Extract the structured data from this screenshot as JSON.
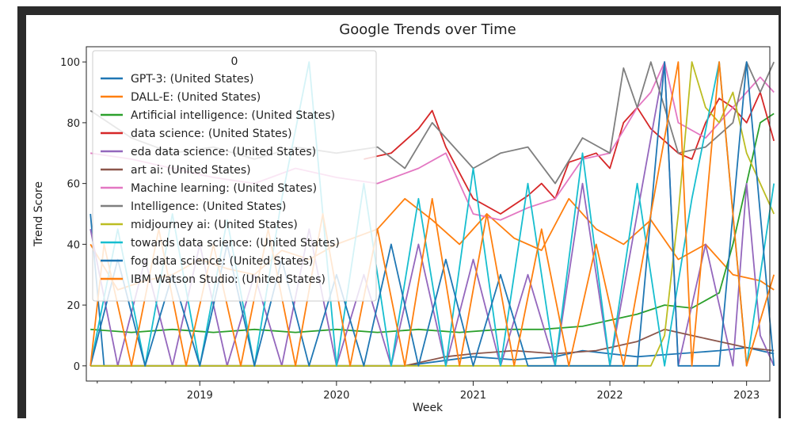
{
  "chart_data": {
    "type": "line",
    "title": "Google Trends over Time",
    "xlabel": "Week",
    "ylabel": "Trend Score",
    "legend_title": "0",
    "legend_placement": "upper-left",
    "x_range": [
      "2018-03-01",
      "2023-03-05"
    ],
    "ylim": [
      -5,
      105
    ],
    "x_ticks": [
      "2019",
      "2020",
      "2021",
      "2022",
      "2023"
    ],
    "y_ticks": [
      0,
      20,
      40,
      60,
      80,
      100
    ],
    "series": [
      {
        "name": "GPT-3: (United States)",
        "color": "#1f77b4",
        "values": [
          [
            2018.2,
            50
          ],
          [
            2018.3,
            0
          ],
          [
            2018.5,
            0
          ],
          [
            2018.7,
            0
          ],
          [
            2019.0,
            0
          ],
          [
            2019.5,
            0
          ],
          [
            2020.0,
            0
          ],
          [
            2020.5,
            0
          ],
          [
            2021.0,
            3
          ],
          [
            2021.3,
            2
          ],
          [
            2021.6,
            3
          ],
          [
            2021.8,
            5
          ],
          [
            2022.0,
            4
          ],
          [
            2022.2,
            3
          ],
          [
            2022.5,
            4
          ],
          [
            2022.8,
            5
          ],
          [
            2023.0,
            6
          ],
          [
            2023.2,
            4
          ]
        ]
      },
      {
        "name": "DALL-E: (United States)",
        "color": "#ff7f0e",
        "values": [
          [
            2018.2,
            40
          ],
          [
            2018.4,
            25
          ],
          [
            2018.6,
            28
          ],
          [
            2018.8,
            30
          ],
          [
            2019.0,
            35
          ],
          [
            2019.2,
            32
          ],
          [
            2019.4,
            30
          ],
          [
            2019.6,
            38
          ],
          [
            2019.8,
            35
          ],
          [
            2020.0,
            40
          ],
          [
            2020.3,
            45
          ],
          [
            2020.5,
            55
          ],
          [
            2020.7,
            48
          ],
          [
            2020.9,
            40
          ],
          [
            2021.1,
            50
          ],
          [
            2021.3,
            42
          ],
          [
            2021.5,
            38
          ],
          [
            2021.7,
            55
          ],
          [
            2021.9,
            45
          ],
          [
            2022.1,
            40
          ],
          [
            2022.3,
            48
          ],
          [
            2022.5,
            35
          ],
          [
            2022.7,
            40
          ],
          [
            2022.9,
            30
          ],
          [
            2023.1,
            28
          ],
          [
            2023.2,
            25
          ]
        ]
      },
      {
        "name": "Artificial intelligence: (United States)",
        "color": "#2ca02c",
        "values": [
          [
            2018.2,
            12
          ],
          [
            2018.5,
            11
          ],
          [
            2018.8,
            12
          ],
          [
            2019.1,
            11
          ],
          [
            2019.4,
            12
          ],
          [
            2019.7,
            11
          ],
          [
            2020.0,
            12
          ],
          [
            2020.3,
            11
          ],
          [
            2020.6,
            12
          ],
          [
            2020.9,
            11
          ],
          [
            2021.2,
            12
          ],
          [
            2021.5,
            12
          ],
          [
            2021.8,
            13
          ],
          [
            2022.0,
            15
          ],
          [
            2022.2,
            17
          ],
          [
            2022.4,
            20
          ],
          [
            2022.6,
            19
          ],
          [
            2022.8,
            24
          ],
          [
            2022.9,
            40
          ],
          [
            2023.0,
            60
          ],
          [
            2023.1,
            80
          ],
          [
            2023.2,
            83
          ]
        ]
      },
      {
        "name": "data science: (United States)",
        "color": "#d62728",
        "values": [
          [
            2020.2,
            68
          ],
          [
            2020.4,
            70
          ],
          [
            2020.6,
            78
          ],
          [
            2020.7,
            84
          ],
          [
            2020.8,
            72
          ],
          [
            2021.0,
            55
          ],
          [
            2021.2,
            50
          ],
          [
            2021.4,
            56
          ],
          [
            2021.5,
            60
          ],
          [
            2021.6,
            55
          ],
          [
            2021.7,
            67
          ],
          [
            2021.9,
            70
          ],
          [
            2022.0,
            65
          ],
          [
            2022.1,
            80
          ],
          [
            2022.2,
            85
          ],
          [
            2022.3,
            78
          ],
          [
            2022.5,
            70
          ],
          [
            2022.6,
            68
          ],
          [
            2022.7,
            80
          ],
          [
            2022.8,
            88
          ],
          [
            2022.9,
            85
          ],
          [
            2023.0,
            80
          ],
          [
            2023.1,
            90
          ],
          [
            2023.2,
            74
          ]
        ]
      },
      {
        "name": "eda data science: (United States)",
        "color": "#9467bd",
        "values": [
          [
            2018.2,
            45
          ],
          [
            2018.4,
            0
          ],
          [
            2018.6,
            35
          ],
          [
            2018.8,
            0
          ],
          [
            2019.0,
            40
          ],
          [
            2019.2,
            0
          ],
          [
            2019.4,
            30
          ],
          [
            2019.6,
            0
          ],
          [
            2019.8,
            45
          ],
          [
            2020.0,
            0
          ],
          [
            2020.2,
            30
          ],
          [
            2020.4,
            0
          ],
          [
            2020.6,
            40
          ],
          [
            2020.8,
            0
          ],
          [
            2021.0,
            35
          ],
          [
            2021.2,
            0
          ],
          [
            2021.4,
            30
          ],
          [
            2021.6,
            0
          ],
          [
            2021.8,
            60
          ],
          [
            2022.0,
            0
          ],
          [
            2022.2,
            50
          ],
          [
            2022.4,
            100
          ],
          [
            2022.5,
            0
          ],
          [
            2022.7,
            40
          ],
          [
            2022.9,
            0
          ],
          [
            2023.0,
            60
          ],
          [
            2023.1,
            10
          ],
          [
            2023.2,
            0
          ]
        ]
      },
      {
        "name": "art ai: (United States)",
        "color": "#8c564b",
        "values": [
          [
            2018.2,
            0
          ],
          [
            2019.0,
            0
          ],
          [
            2020.0,
            0
          ],
          [
            2020.5,
            0
          ],
          [
            2020.8,
            3
          ],
          [
            2021.0,
            4
          ],
          [
            2021.3,
            5
          ],
          [
            2021.6,
            4
          ],
          [
            2021.9,
            5
          ],
          [
            2022.2,
            8
          ],
          [
            2022.4,
            12
          ],
          [
            2022.6,
            10
          ],
          [
            2022.8,
            8
          ],
          [
            2023.0,
            6
          ],
          [
            2023.2,
            5
          ]
        ]
      },
      {
        "name": "Machine learning: (United States)",
        "color": "#e377c2",
        "values": [
          [
            2018.2,
            70
          ],
          [
            2018.5,
            68
          ],
          [
            2018.8,
            65
          ],
          [
            2019.1,
            62
          ],
          [
            2019.4,
            60
          ],
          [
            2019.7,
            65
          ],
          [
            2020.0,
            62
          ],
          [
            2020.3,
            60
          ],
          [
            2020.6,
            65
          ],
          [
            2020.8,
            70
          ],
          [
            2021.0,
            50
          ],
          [
            2021.2,
            48
          ],
          [
            2021.4,
            52
          ],
          [
            2021.6,
            55
          ],
          [
            2021.8,
            68
          ],
          [
            2022.0,
            70
          ],
          [
            2022.2,
            85
          ],
          [
            2022.3,
            90
          ],
          [
            2022.4,
            100
          ],
          [
            2022.5,
            80
          ],
          [
            2022.7,
            75
          ],
          [
            2022.9,
            85
          ],
          [
            2023.0,
            90
          ],
          [
            2023.1,
            95
          ],
          [
            2023.2,
            90
          ]
        ]
      },
      {
        "name": "Intelligence: (United States)",
        "color": "#7f7f7f",
        "values": [
          [
            2018.2,
            84
          ],
          [
            2018.5,
            75
          ],
          [
            2018.8,
            70
          ],
          [
            2019.1,
            72
          ],
          [
            2019.4,
            68
          ],
          [
            2019.7,
            72
          ],
          [
            2020.0,
            70
          ],
          [
            2020.3,
            72
          ],
          [
            2020.5,
            65
          ],
          [
            2020.7,
            80
          ],
          [
            2020.8,
            75
          ],
          [
            2021.0,
            65
          ],
          [
            2021.2,
            70
          ],
          [
            2021.4,
            72
          ],
          [
            2021.6,
            60
          ],
          [
            2021.8,
            75
          ],
          [
            2022.0,
            70
          ],
          [
            2022.1,
            98
          ],
          [
            2022.2,
            85
          ],
          [
            2022.3,
            100
          ],
          [
            2022.5,
            70
          ],
          [
            2022.7,
            72
          ],
          [
            2022.9,
            80
          ],
          [
            2023.0,
            100
          ],
          [
            2023.1,
            90
          ],
          [
            2023.2,
            100
          ]
        ]
      },
      {
        "name": "midjourney ai: (United States)",
        "color": "#bcbd22",
        "values": [
          [
            2018.2,
            0
          ],
          [
            2019.0,
            0
          ],
          [
            2020.0,
            0
          ],
          [
            2021.0,
            0
          ],
          [
            2022.0,
            0
          ],
          [
            2022.3,
            0
          ],
          [
            2022.4,
            10
          ],
          [
            2022.5,
            50
          ],
          [
            2022.6,
            100
          ],
          [
            2022.7,
            85
          ],
          [
            2022.8,
            80
          ],
          [
            2022.9,
            90
          ],
          [
            2023.0,
            70
          ],
          [
            2023.1,
            60
          ],
          [
            2023.2,
            50
          ]
        ]
      },
      {
        "name": "towards data science: (United States)",
        "color": "#17becf",
        "values": [
          [
            2018.2,
            0
          ],
          [
            2018.4,
            45
          ],
          [
            2018.6,
            0
          ],
          [
            2018.8,
            50
          ],
          [
            2019.0,
            0
          ],
          [
            2019.2,
            48
          ],
          [
            2019.4,
            0
          ],
          [
            2019.6,
            55
          ],
          [
            2019.8,
            100
          ],
          [
            2020.0,
            0
          ],
          [
            2020.2,
            60
          ],
          [
            2020.4,
            0
          ],
          [
            2020.6,
            55
          ],
          [
            2020.8,
            0
          ],
          [
            2021.0,
            65
          ],
          [
            2021.2,
            0
          ],
          [
            2021.4,
            60
          ],
          [
            2021.6,
            0
          ],
          [
            2021.8,
            70
          ],
          [
            2022.0,
            0
          ],
          [
            2022.2,
            60
          ],
          [
            2022.4,
            0
          ],
          [
            2022.6,
            55
          ],
          [
            2022.8,
            100
          ],
          [
            2023.0,
            0
          ],
          [
            2023.2,
            60
          ]
        ]
      },
      {
        "name": "fog data science: (United States)",
        "color": "#1f77b4",
        "values": [
          [
            2018.2,
            0
          ],
          [
            2018.4,
            35
          ],
          [
            2018.6,
            0
          ],
          [
            2018.8,
            30
          ],
          [
            2019.0,
            0
          ],
          [
            2019.2,
            40
          ],
          [
            2019.4,
            0
          ],
          [
            2019.6,
            35
          ],
          [
            2019.8,
            0
          ],
          [
            2020.0,
            30
          ],
          [
            2020.2,
            0
          ],
          [
            2020.4,
            40
          ],
          [
            2020.6,
            0
          ],
          [
            2020.8,
            35
          ],
          [
            2021.0,
            0
          ],
          [
            2021.2,
            30
          ],
          [
            2021.4,
            0
          ],
          [
            2021.6,
            0
          ],
          [
            2021.8,
            0
          ],
          [
            2022.0,
            0
          ],
          [
            2022.2,
            0
          ],
          [
            2022.4,
            100
          ],
          [
            2022.5,
            0
          ],
          [
            2022.8,
            0
          ],
          [
            2023.0,
            100
          ],
          [
            2023.2,
            0
          ]
        ]
      },
      {
        "name": "IBM Watson Studio: (United States)",
        "color": "#ff7f0e",
        "values": [
          [
            2018.2,
            0
          ],
          [
            2018.3,
            40
          ],
          [
            2018.5,
            0
          ],
          [
            2018.7,
            45
          ],
          [
            2018.9,
            0
          ],
          [
            2019.1,
            40
          ],
          [
            2019.3,
            0
          ],
          [
            2019.5,
            45
          ],
          [
            2019.7,
            0
          ],
          [
            2019.9,
            50
          ],
          [
            2020.1,
            0
          ],
          [
            2020.3,
            45
          ],
          [
            2020.5,
            0
          ],
          [
            2020.7,
            55
          ],
          [
            2020.9,
            0
          ],
          [
            2021.1,
            50
          ],
          [
            2021.3,
            0
          ],
          [
            2021.5,
            45
          ],
          [
            2021.7,
            0
          ],
          [
            2021.9,
            40
          ],
          [
            2022.1,
            0
          ],
          [
            2022.3,
            50
          ],
          [
            2022.5,
            100
          ],
          [
            2022.6,
            0
          ],
          [
            2022.8,
            100
          ],
          [
            2023.0,
            0
          ],
          [
            2023.2,
            30
          ]
        ]
      }
    ]
  }
}
